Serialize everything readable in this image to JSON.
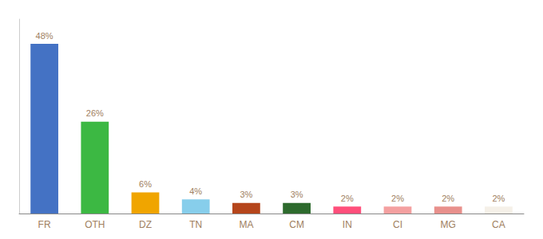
{
  "chart_data": {
    "type": "bar",
    "categories": [
      "FR",
      "OTH",
      "DZ",
      "TN",
      "MA",
      "CM",
      "IN",
      "CI",
      "MG",
      "CA"
    ],
    "values": [
      48,
      26,
      6,
      4,
      3,
      3,
      2,
      2,
      2,
      2
    ],
    "value_labels": [
      "48%",
      "26%",
      "6%",
      "4%",
      "3%",
      "3%",
      "2%",
      "2%",
      "2%",
      "2%"
    ],
    "colors": [
      "#4472c4",
      "#3cb843",
      "#f0a500",
      "#87ceeb",
      "#b5451b",
      "#2d6a2d",
      "#ff4f7b",
      "#f4a0a0",
      "#e8908c",
      "#f5f0e8"
    ],
    "ylim": [
      0,
      55
    ],
    "data_labels": true,
    "tick_labels": "x",
    "grid": false
  }
}
